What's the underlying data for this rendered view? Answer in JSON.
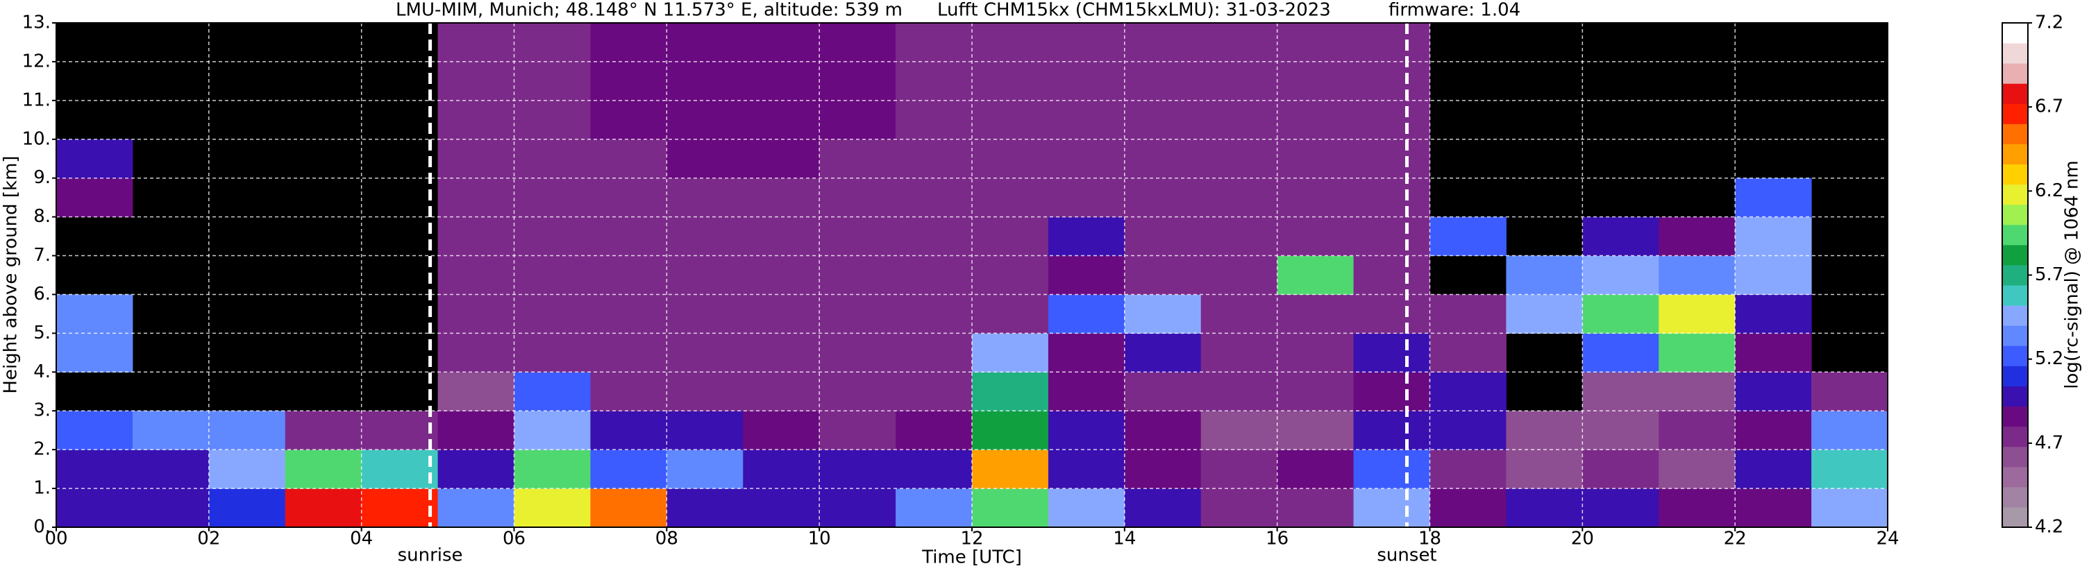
{
  "chart_data": {
    "type": "heatmap",
    "title": "LMU-MIM, Munich; 48.148° N 11.573° E, altitude: 539 m",
    "subtitle": "Lufft CHM15kx (CHM15kxLMU): 31-03-2023",
    "firmware": "firmware: 1.04",
    "x_label": "Time [UTC]",
    "y_label": "Height above ground [km]",
    "xlim": [
      0,
      24
    ],
    "ylim": [
      0,
      13
    ],
    "xticks": [
      {
        "value": 0,
        "label": "00"
      },
      {
        "value": 2,
        "label": "02"
      },
      {
        "value": 4,
        "label": "04"
      },
      {
        "value": 6,
        "label": "06"
      },
      {
        "value": 8,
        "label": "08"
      },
      {
        "value": 10,
        "label": "10"
      },
      {
        "value": 12,
        "label": "12"
      },
      {
        "value": 14,
        "label": "14"
      },
      {
        "value": 16,
        "label": "16"
      },
      {
        "value": 18,
        "label": "18"
      },
      {
        "value": 20,
        "label": "20"
      },
      {
        "value": 22,
        "label": "22"
      },
      {
        "value": 24,
        "label": "24"
      }
    ],
    "yticks": [
      {
        "value": 0,
        "label": "0."
      },
      {
        "value": 1,
        "label": "1."
      },
      {
        "value": 2,
        "label": "2."
      },
      {
        "value": 3,
        "label": "3."
      },
      {
        "value": 4,
        "label": "4."
      },
      {
        "value": 5,
        "label": "5."
      },
      {
        "value": 6,
        "label": "6."
      },
      {
        "value": 7,
        "label": "7."
      },
      {
        "value": 8,
        "label": "8."
      },
      {
        "value": 9,
        "label": "9."
      },
      {
        "value": 10,
        "label": "10."
      },
      {
        "value": 11,
        "label": "11."
      },
      {
        "value": 12,
        "label": "12."
      },
      {
        "value": 13,
        "label": "13."
      }
    ],
    "grid": true,
    "xbins": [
      0,
      1,
      2,
      3,
      4,
      5,
      6,
      7,
      8,
      9,
      10,
      11,
      12,
      13,
      14,
      15,
      16,
      17,
      18,
      19,
      20,
      21,
      22,
      23,
      24
    ],
    "ybins": [
      0,
      1,
      2,
      3,
      4,
      5,
      6,
      7,
      8,
      9,
      10,
      11,
      12,
      13
    ],
    "z": [
      [
        5.0,
        5.0,
        5.1,
        6.8,
        6.7,
        5.3,
        6.2,
        6.6,
        5.0,
        4.9,
        4.9,
        5.3,
        6.0,
        5.5,
        5.0,
        4.7,
        4.7,
        5.5,
        4.8,
        4.9,
        4.9,
        4.8,
        4.8,
        5.5
      ],
      [
        5.0,
        5.0,
        5.5,
        6.0,
        5.6,
        5.0,
        6.0,
        5.2,
        5.3,
        5.0,
        4.9,
        5.0,
        6.5,
        5.0,
        4.8,
        4.7,
        4.8,
        5.2,
        4.7,
        4.6,
        4.7,
        4.6,
        5.0,
        5.6
      ],
      [
        5.2,
        5.3,
        5.3,
        4.7,
        4.7,
        4.8,
        5.5,
        4.9,
        5.0,
        4.8,
        4.7,
        4.8,
        5.8,
        5.0,
        4.8,
        4.6,
        4.6,
        4.9,
        5.0,
        4.6,
        4.6,
        4.7,
        4.8,
        5.3
      ],
      [
        null,
        null,
        null,
        null,
        null,
        4.6,
        5.2,
        4.7,
        4.7,
        4.7,
        4.7,
        4.7,
        5.7,
        4.8,
        4.7,
        4.7,
        4.7,
        4.8,
        5.0,
        null,
        4.6,
        4.6,
        5.0,
        4.7
      ],
      [
        5.3,
        null,
        null,
        null,
        null,
        4.7,
        4.7,
        4.7,
        4.7,
        4.7,
        4.7,
        4.7,
        5.5,
        4.8,
        5.0,
        4.7,
        4.7,
        5.0,
        4.7,
        null,
        5.2,
        6.0,
        4.8,
        null
      ],
      [
        5.3,
        null,
        null,
        null,
        null,
        4.7,
        4.7,
        4.7,
        4.7,
        4.7,
        4.7,
        4.7,
        4.7,
        5.2,
        5.5,
        4.7,
        4.7,
        4.7,
        4.7,
        5.5,
        6.0,
        6.2,
        5.0,
        null
      ],
      [
        null,
        null,
        null,
        null,
        null,
        4.7,
        4.7,
        4.7,
        4.7,
        4.7,
        4.7,
        4.7,
        4.7,
        4.8,
        4.7,
        4.7,
        6.0,
        4.7,
        null,
        5.3,
        5.5,
        5.3,
        5.5,
        null
      ],
      [
        null,
        null,
        null,
        null,
        null,
        4.7,
        4.7,
        4.7,
        4.7,
        4.7,
        4.7,
        4.7,
        4.7,
        5.0,
        4.7,
        4.7,
        4.7,
        4.7,
        5.2,
        null,
        5.0,
        4.8,
        5.5,
        null
      ],
      [
        4.8,
        null,
        null,
        null,
        null,
        4.7,
        4.7,
        4.7,
        4.7,
        4.7,
        4.7,
        4.7,
        4.7,
        4.7,
        4.7,
        4.7,
        4.7,
        4.7,
        null,
        null,
        null,
        null,
        5.2,
        null
      ],
      [
        5.0,
        null,
        null,
        null,
        null,
        4.7,
        4.7,
        4.7,
        4.8,
        4.8,
        4.7,
        4.7,
        4.7,
        4.7,
        4.7,
        4.7,
        4.7,
        4.7,
        null,
        null,
        null,
        null,
        null,
        null
      ],
      [
        null,
        null,
        null,
        null,
        null,
        4.7,
        4.7,
        4.8,
        4.8,
        4.8,
        4.8,
        4.7,
        4.7,
        4.7,
        4.7,
        4.7,
        4.7,
        4.7,
        null,
        null,
        null,
        null,
        null,
        null
      ],
      [
        null,
        null,
        null,
        null,
        null,
        4.7,
        4.7,
        4.8,
        4.8,
        4.8,
        4.8,
        4.7,
        4.7,
        4.7,
        4.7,
        4.7,
        4.7,
        4.7,
        null,
        null,
        null,
        null,
        null,
        null
      ],
      [
        null,
        null,
        null,
        null,
        null,
        4.7,
        4.7,
        4.8,
        4.8,
        4.8,
        4.8,
        4.7,
        4.7,
        4.7,
        4.7,
        4.7,
        4.7,
        4.7,
        null,
        null,
        null,
        null,
        null,
        null
      ]
    ],
    "annotations": [
      {
        "x": 4.9,
        "label": "sunrise"
      },
      {
        "x": 17.7,
        "label": "sunset"
      }
    ],
    "colorbar": {
      "label": "log(rc-signal) @ 1064 nm",
      "ticks": [
        4.2,
        4.7,
        5.2,
        5.7,
        6.2,
        6.7,
        7.2
      ],
      "colors": [
        "#a899a8",
        "#a383a3",
        "#9c6a9c",
        "#8e4e92",
        "#7c2a8a",
        "#6a0a80",
        "#3a10b0",
        "#2030e0",
        "#3c5cff",
        "#6088ff",
        "#88a8ff",
        "#40c8c0",
        "#20b080",
        "#10a040",
        "#50d870",
        "#a0f050",
        "#e8f030",
        "#ffd000",
        "#ffa000",
        "#ff7000",
        "#ff2000",
        "#e81010",
        "#e8b0b0",
        "#f0d8d8",
        "#ffffff"
      ]
    }
  }
}
